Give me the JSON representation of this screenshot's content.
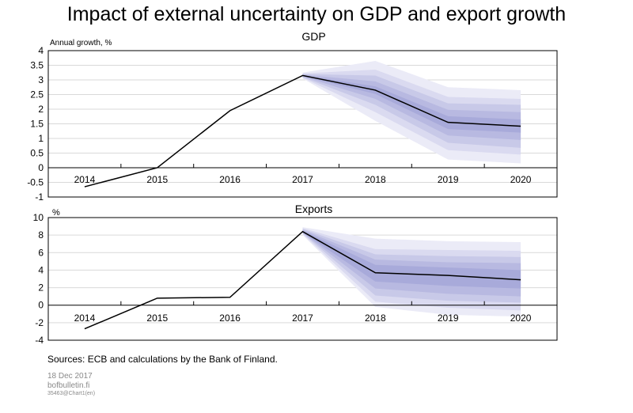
{
  "title": "Impact of external uncertainty on GDP and export growth",
  "fan_colors": [
    "#ebebf7",
    "#dadaf0",
    "#c8c9e8",
    "#b8b9e1",
    "#a8aada"
  ],
  "line_color": "#000000",
  "chart_data": [
    {
      "type": "line",
      "title": "GDP",
      "ylabel": "Annual growth, %",
      "categories": [
        "2014",
        "2015",
        "2016",
        "2017",
        "2018",
        "2019",
        "2020"
      ],
      "ylim": [
        -1,
        4
      ],
      "yticks": [
        "4",
        "3.5",
        "3",
        "2.5",
        "2",
        "1.5",
        "1",
        "0.5",
        "0",
        "-0.5",
        "-1"
      ],
      "grid": true,
      "series": [
        {
          "values": [
            -0.65,
            0.0,
            1.95,
            3.15,
            2.65,
            1.55,
            1.42
          ]
        }
      ],
      "fan_bands": [
        {
          "lower": [
            null,
            null,
            null,
            3.05,
            1.6,
            0.28,
            0.15
          ],
          "upper": [
            null,
            null,
            null,
            3.25,
            3.65,
            2.75,
            2.65
          ]
        },
        {
          "lower": [
            null,
            null,
            null,
            3.07,
            1.9,
            0.6,
            0.45
          ],
          "upper": [
            null,
            null,
            null,
            3.22,
            3.35,
            2.42,
            2.35
          ]
        },
        {
          "lower": [
            null,
            null,
            null,
            3.09,
            2.15,
            0.85,
            0.68
          ],
          "upper": [
            null,
            null,
            null,
            3.2,
            3.15,
            2.2,
            2.15
          ]
        },
        {
          "lower": [
            null,
            null,
            null,
            3.11,
            2.35,
            1.1,
            0.95
          ],
          "upper": [
            null,
            null,
            null,
            3.18,
            2.95,
            1.98,
            1.9
          ]
        },
        {
          "lower": [
            null,
            null,
            null,
            3.13,
            2.52,
            1.32,
            1.2
          ],
          "upper": [
            null,
            null,
            null,
            3.16,
            2.78,
            1.76,
            1.65
          ]
        }
      ]
    },
    {
      "type": "line",
      "title": "Exports",
      "ylabel": "%",
      "categories": [
        "2014",
        "2015",
        "2016",
        "2017",
        "2018",
        "2019",
        "2020"
      ],
      "ylim": [
        -4,
        10
      ],
      "yticks": [
        "10",
        "8",
        "6",
        "4",
        "2",
        "0",
        "-2",
        "-4"
      ],
      "grid": true,
      "series": [
        {
          "values": [
            -2.7,
            0.8,
            0.9,
            8.4,
            3.7,
            3.4,
            2.9
          ]
        }
      ],
      "fan_bands": [
        {
          "lower": [
            null,
            null,
            null,
            8.0,
            -0.2,
            -1.1,
            -1.3
          ],
          "upper": [
            null,
            null,
            null,
            8.9,
            7.6,
            7.3,
            7.2
          ]
        },
        {
          "lower": [
            null,
            null,
            null,
            8.1,
            0.4,
            -0.3,
            -0.6
          ],
          "upper": [
            null,
            null,
            null,
            8.8,
            6.4,
            6.3,
            6.2
          ]
        },
        {
          "lower": [
            null,
            null,
            null,
            8.2,
            1.1,
            0.5,
            0.3
          ],
          "upper": [
            null,
            null,
            null,
            8.7,
            5.8,
            5.6,
            5.5
          ]
        },
        {
          "lower": [
            null,
            null,
            null,
            8.25,
            1.9,
            1.3,
            1.0
          ],
          "upper": [
            null,
            null,
            null,
            8.6,
            5.2,
            4.9,
            4.8
          ]
        },
        {
          "lower": [
            null,
            null,
            null,
            8.3,
            2.7,
            2.2,
            1.9
          ],
          "upper": [
            null,
            null,
            null,
            8.5,
            4.6,
            4.3,
            4.0
          ]
        }
      ]
    }
  ],
  "footer": {
    "sources": "Sources: ECB and calculations by the Bank of Finland.",
    "date": "18 Dec 2017",
    "site": "bofbulletin.fi",
    "code": "35463@Chart1(en)"
  }
}
